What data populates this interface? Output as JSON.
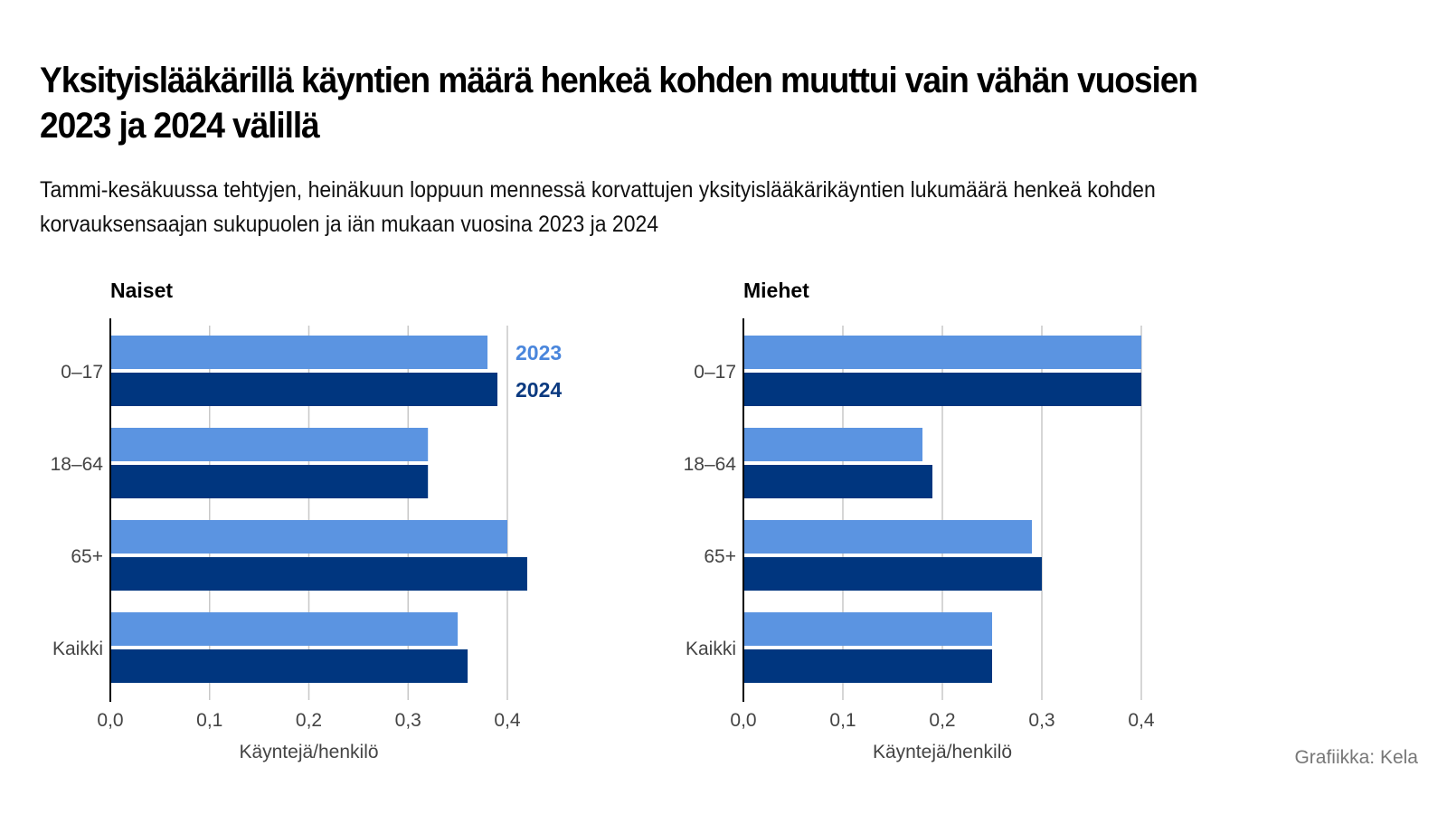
{
  "header": {
    "title": "Yksityislääkärillä käyntien määrä henkeä kohden muuttui vain vähän vuosien 2023 ja 2024 välillä",
    "subtitle": "Tammi-kesäkuussa tehtyjen, heinäkuun loppuun mennessä korvattujen yksityislääkärikäyntien lukumäärä henkeä kohden korvauksensaajan sukupuolen ja iän mukaan vuosina 2023 ja 2024"
  },
  "credit": "Grafiikka: Kela",
  "colors": {
    "series_2023": "#5b94e1",
    "series_2024": "#00367f",
    "gridline": "#c8c8c8",
    "axis": "#000000",
    "label_2023": "#4a86dc",
    "label_2024": "#0b3a80"
  },
  "chart_data": [
    {
      "type": "bar",
      "orientation": "horizontal",
      "title": "Naiset",
      "categories": [
        "0–17",
        "18–64",
        "65+",
        "Kaikki"
      ],
      "series": [
        {
          "name": "2023",
          "values": [
            0.38,
            0.32,
            0.4,
            0.35
          ]
        },
        {
          "name": "2024",
          "values": [
            0.39,
            0.32,
            0.42,
            0.36
          ]
        }
      ],
      "xlabel": "Käyntejä/henkilö",
      "ylabel": "",
      "xlim": [
        0,
        0.4
      ],
      "xticks": [
        0,
        0.1,
        0.2,
        0.3,
        0.4
      ],
      "xtick_labels": [
        "0,0",
        "0,1",
        "0,2",
        "0,3",
        "0,4"
      ],
      "grid": true,
      "legend": {
        "placement": "right-of-first-group",
        "entries": [
          "2023",
          "2024"
        ]
      }
    },
    {
      "type": "bar",
      "orientation": "horizontal",
      "title": "Miehet",
      "categories": [
        "0–17",
        "18–64",
        "65+",
        "Kaikki"
      ],
      "series": [
        {
          "name": "2023",
          "values": [
            0.4,
            0.18,
            0.29,
            0.25
          ]
        },
        {
          "name": "2024",
          "values": [
            0.4,
            0.19,
            0.3,
            0.25
          ]
        }
      ],
      "xlabel": "Käyntejä/henkilö",
      "ylabel": "",
      "xlim": [
        0,
        0.4
      ],
      "xticks": [
        0,
        0.1,
        0.2,
        0.3,
        0.4
      ],
      "xtick_labels": [
        "0,0",
        "0,1",
        "0,2",
        "0,3",
        "0,4"
      ],
      "grid": true,
      "legend": null
    }
  ]
}
